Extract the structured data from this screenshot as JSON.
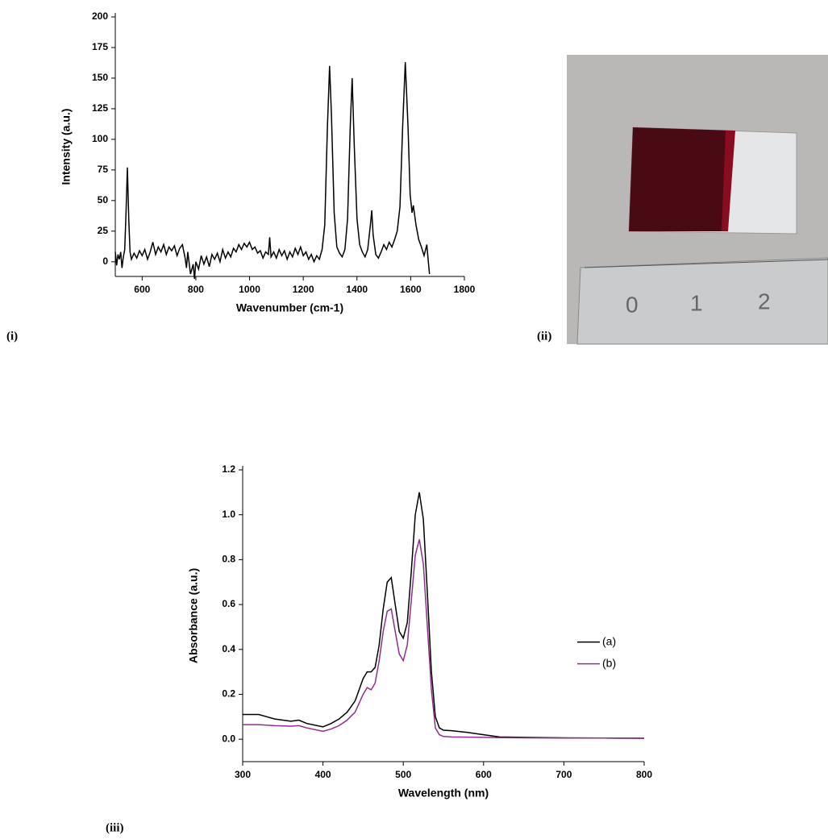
{
  "chart_data": [
    {
      "type": "line",
      "x_label": "Wavenumber (cm-1)",
      "y_label": "Intensity (a.u.)",
      "color": "#000000",
      "x": [
        500,
        505,
        510,
        515,
        520,
        525,
        530,
        535,
        540,
        545,
        550,
        555,
        560,
        570,
        580,
        590,
        600,
        610,
        620,
        630,
        640,
        650,
        660,
        670,
        680,
        690,
        700,
        710,
        720,
        730,
        740,
        750,
        760,
        765,
        770,
        780,
        790,
        795,
        800,
        810,
        820,
        830,
        840,
        850,
        860,
        870,
        880,
        890,
        900,
        910,
        920,
        930,
        940,
        950,
        960,
        970,
        980,
        990,
        1000,
        1010,
        1020,
        1030,
        1040,
        1050,
        1060,
        1070,
        1075,
        1080,
        1090,
        1100,
        1110,
        1120,
        1130,
        1140,
        1150,
        1160,
        1170,
        1180,
        1190,
        1200,
        1210,
        1220,
        1230,
        1240,
        1250,
        1260,
        1270,
        1280,
        1290,
        1298,
        1305,
        1315,
        1325,
        1335,
        1345,
        1355,
        1365,
        1375,
        1382,
        1390,
        1400,
        1410,
        1420,
        1430,
        1440,
        1450,
        1455,
        1460,
        1470,
        1480,
        1490,
        1500,
        1510,
        1520,
        1530,
        1540,
        1550,
        1560,
        1570,
        1580,
        1590,
        1598,
        1605,
        1610,
        1620,
        1630,
        1640,
        1650,
        1660,
        1665,
        1670
      ],
      "values": [
        8,
        -3,
        6,
        2,
        8,
        -5,
        4,
        10,
        40,
        77,
        35,
        8,
        2,
        7,
        3,
        9,
        5,
        10,
        2,
        8,
        16,
        6,
        12,
        8,
        14,
        6,
        12,
        9,
        13,
        5,
        11,
        14,
        3,
        -5,
        8,
        -10,
        -2,
        -14,
        0,
        -6,
        5,
        -2,
        4,
        -4,
        6,
        2,
        7,
        0,
        10,
        3,
        8,
        4,
        11,
        8,
        14,
        10,
        15,
        12,
        16,
        10,
        12,
        7,
        9,
        3,
        8,
        6,
        20,
        4,
        8,
        3,
        10,
        5,
        9,
        2,
        8,
        4,
        11,
        6,
        12,
        5,
        8,
        2,
        6,
        0,
        5,
        2,
        10,
        30,
        110,
        160,
        120,
        40,
        12,
        7,
        4,
        10,
        35,
        110,
        150,
        95,
        35,
        14,
        8,
        4,
        10,
        30,
        42,
        22,
        6,
        3,
        8,
        14,
        10,
        16,
        12,
        18,
        25,
        45,
        110,
        163,
        110,
        55,
        40,
        46,
        30,
        18,
        12,
        5,
        14,
        2,
        -10
      ],
      "xlim": [
        500,
        1800
      ],
      "xticks": [
        600,
        800,
        1000,
        1200,
        1400,
        1600,
        1800
      ],
      "ylim": [
        -12,
        200
      ],
      "yticks": [
        0,
        25,
        50,
        75,
        100,
        125,
        150,
        175,
        200
      ]
    },
    {
      "type": "line",
      "x_label": "Wavelength (nm)",
      "y_label": "Absorbance (a.u.)",
      "legend": "right",
      "x": [
        300,
        320,
        340,
        360,
        370,
        380,
        400,
        410,
        420,
        430,
        440,
        450,
        455,
        460,
        465,
        470,
        475,
        480,
        485,
        490,
        495,
        500,
        505,
        510,
        515,
        520,
        525,
        530,
        535,
        540,
        545,
        550,
        560,
        580,
        600,
        620,
        650,
        700,
        750,
        800
      ],
      "series": [
        {
          "name": "(a)",
          "color": "#000000",
          "values": [
            0.11,
            0.11,
            0.09,
            0.08,
            0.085,
            0.07,
            0.055,
            0.07,
            0.09,
            0.12,
            0.17,
            0.27,
            0.3,
            0.3,
            0.32,
            0.42,
            0.58,
            0.7,
            0.72,
            0.6,
            0.48,
            0.45,
            0.52,
            0.75,
            1.0,
            1.1,
            0.98,
            0.65,
            0.3,
            0.1,
            0.05,
            0.04,
            0.038,
            0.03,
            0.02,
            0.01,
            0.008,
            0.006,
            0.005,
            0.004
          ]
        },
        {
          "name": "(b)",
          "color": "#8e2f8e",
          "values": [
            0.065,
            0.065,
            0.06,
            0.058,
            0.06,
            0.05,
            0.035,
            0.045,
            0.06,
            0.085,
            0.12,
            0.2,
            0.23,
            0.22,
            0.25,
            0.35,
            0.48,
            0.57,
            0.58,
            0.48,
            0.38,
            0.35,
            0.42,
            0.62,
            0.82,
            0.89,
            0.78,
            0.5,
            0.22,
            0.05,
            0.02,
            0.012,
            0.01,
            0.009,
            0.008,
            0.007,
            0.006,
            0.005,
            0.005,
            0.004
          ]
        }
      ],
      "xlim": [
        300,
        800
      ],
      "xticks": [
        300,
        400,
        500,
        600,
        700,
        800
      ],
      "ylim": [
        -0.1,
        1.2
      ],
      "yticks": [
        {
          "value": 0,
          "label": "0.0"
        },
        0.2,
        0.4,
        0.6,
        0.8,
        {
          "value": 1,
          "label": "1.0"
        },
        1.2
      ]
    }
  ],
  "panels": [
    "(i)",
    "(ii)",
    "(iii)"
  ],
  "photo": {
    "ruler_labels": [
      "0",
      "1",
      "2"
    ]
  }
}
